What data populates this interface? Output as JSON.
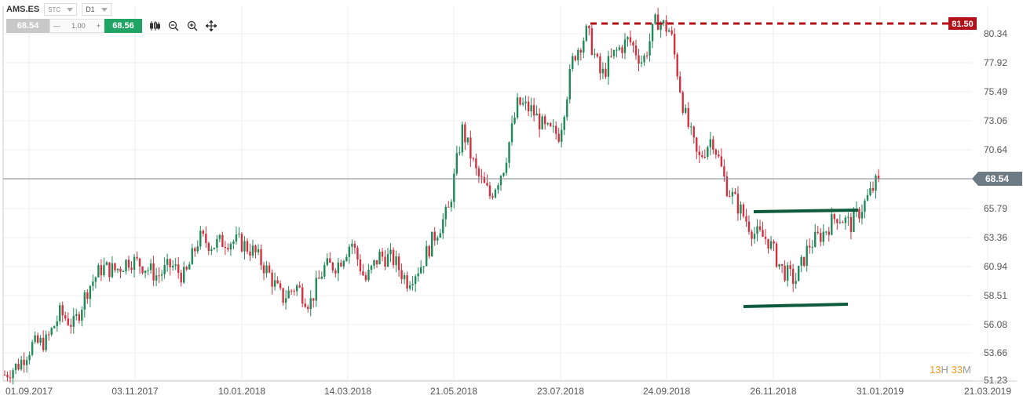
{
  "header": {
    "symbol": "AMS.ES",
    "instrument_type": "STC",
    "interval": "D1",
    "sell_price": "68.54",
    "quantity_minus": "—",
    "quantity": "1.00",
    "quantity_plus": "+",
    "buy_price": "68.56",
    "tools": [
      "candles-icon",
      "zoom-out-icon",
      "zoom-in-icon",
      "crosshair-icon"
    ]
  },
  "timer": {
    "hours": "13",
    "hours_unit": "H",
    "minutes": "33",
    "minutes_unit": "M"
  },
  "colors": {
    "up": "#1e8a57",
    "down": "#d3303f",
    "grid": "#eeeeee",
    "trend": "#0d5a3c",
    "resistance": "#b3111a",
    "current_badge": "#6e7b84"
  },
  "chart_data": {
    "type": "candlestick",
    "title": "AMS.ES D1",
    "y_ticks": [
      "80.34",
      "77.92",
      "75.49",
      "73.06",
      "70.64",
      "68.54",
      "65.79",
      "63.36",
      "60.94",
      "58.51",
      "56.08",
      "53.66",
      "51.23"
    ],
    "x_ticks": [
      "01.09.2017",
      "03.11.2017",
      "10.01.2018",
      "14.03.2018",
      "21.05.2018",
      "23.07.2018",
      "24.09.2018",
      "26.11.2018",
      "31.01.2019",
      "21.03.2019"
    ],
    "current_price": "68.54",
    "resistance_label": "81.50",
    "resistance": 81.5,
    "channel": {
      "upper": [
        {
          "date": "19.11.2018",
          "y": 65.85
        },
        {
          "date": "25.01.2019",
          "y": 65.95
        }
      ],
      "lower": [
        {
          "date": "14.11.2018",
          "y": 57.95
        },
        {
          "date": "20.01.2019",
          "y": 58.05
        }
      ]
    },
    "closes": [
      52.0,
      52.9,
      54.6,
      54.9,
      57.3,
      56.3,
      59.4,
      61.1,
      60.9,
      61.8,
      61.3,
      60.4,
      61.3,
      60.3,
      63.6,
      63.0,
      63.4,
      63.2,
      62.4,
      60.7,
      58.5,
      59.6,
      58.1,
      61.1,
      61.4,
      63.3,
      60.0,
      62.1,
      61.8,
      60.0,
      61.3,
      63.8,
      65.9,
      72.6,
      69.0,
      67.1,
      69.6,
      74.8,
      74.2,
      72.5,
      72.2,
      78.7,
      80.8,
      77.0,
      79.0,
      80.1,
      78.2,
      81.8,
      80.8,
      74.0,
      70.0,
      72.0,
      68.0,
      66.0,
      64.0,
      63.5,
      61.0,
      60.0,
      63.0,
      64.0,
      65.5,
      64.7,
      66.5,
      68.54
    ],
    "start_date": "01.09.2017",
    "candle_count": 318
  }
}
